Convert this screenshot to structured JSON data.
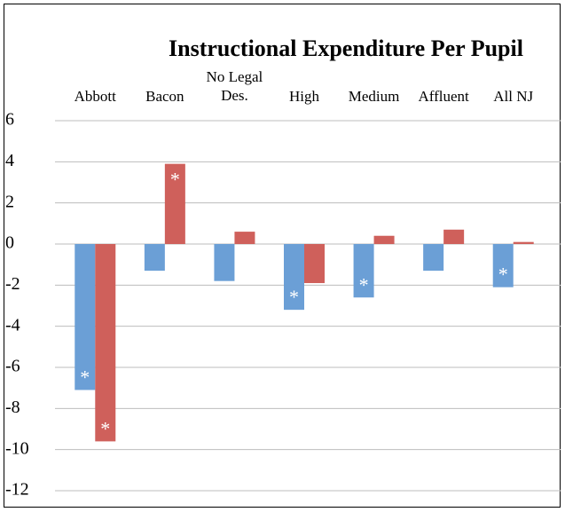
{
  "chart_data": {
    "type": "bar",
    "title": "Instructional Expenditure Per Pupil",
    "categories": [
      "Abbott",
      "Bacon",
      "No Legal Des.",
      "High",
      "Medium",
      "Affluent",
      "All NJ"
    ],
    "series": [
      {
        "color": "#6b9fd6",
        "values": [
          -7.1,
          -1.3,
          -1.8,
          -3.2,
          -2.6,
          -1.3,
          -2.1
        ],
        "flags": [
          "*",
          null,
          null,
          "*",
          "*",
          null,
          "*"
        ]
      },
      {
        "color": "#cf605b",
        "values": [
          -9.6,
          3.9,
          0.6,
          -1.9,
          0.4,
          0.7,
          0.1
        ],
        "flags": [
          "*",
          "*",
          null,
          null,
          null,
          null,
          null
        ]
      }
    ],
    "ylim": [
      -12,
      6
    ],
    "yticks": [
      -12,
      -10,
      -8,
      -6,
      -4,
      -2,
      0,
      2,
      4,
      6
    ],
    "grid": true
  }
}
